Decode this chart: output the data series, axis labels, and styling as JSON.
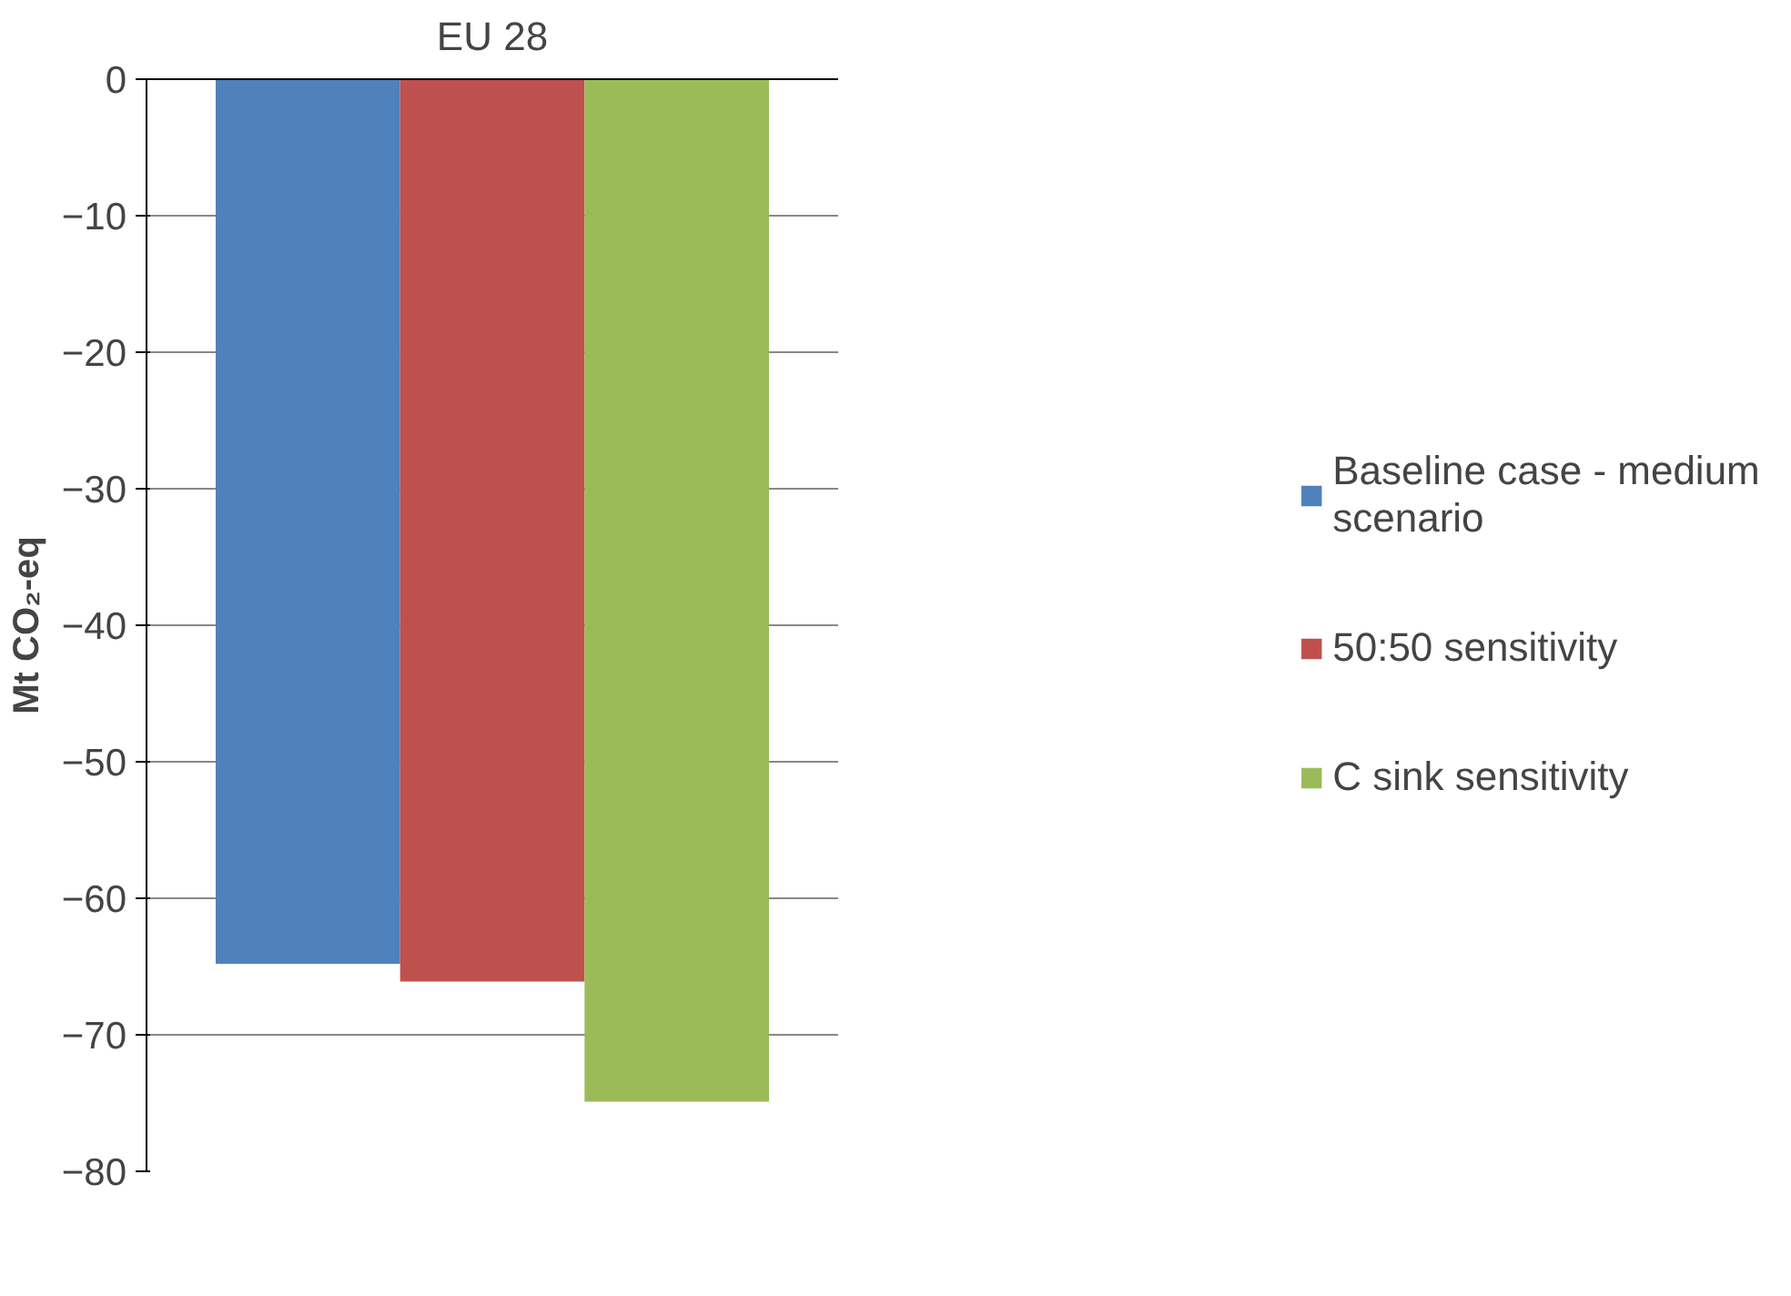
{
  "chart_data": {
    "type": "bar",
    "title": "EU 28",
    "ylabel": "Mt CO₂-eq",
    "categories": [
      null
    ],
    "series": [
      {
        "name": "Baseline case - medium scenario",
        "color": "#4f81bd",
        "values": [
          -64.8
        ]
      },
      {
        "name": "50:50 sensitivity",
        "color": "#c0504d",
        "values": [
          -66.1
        ]
      },
      {
        "name": "C sink sensitivity",
        "color": "#9bbb59",
        "values": [
          -74.9
        ]
      }
    ],
    "ylim": [
      -80,
      0
    ],
    "yticks": [
      0,
      -10,
      -20,
      -30,
      -40,
      -50,
      -60,
      -70,
      -80
    ],
    "grid": "y",
    "legend": "right"
  }
}
